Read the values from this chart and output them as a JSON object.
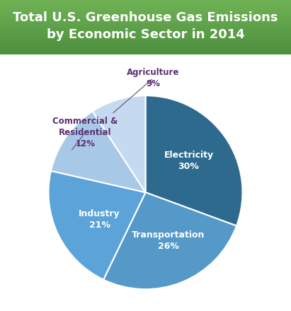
{
  "title": "Total U.S. Greenhouse Gas Emissions\nby Economic Sector in 2014",
  "title_bg_color_top": "#5a9a4a",
  "title_bg_color_bottom": "#8fbc6f",
  "title_text_color": "#ffffff",
  "sectors": [
    "Electricity",
    "Transportation",
    "Industry",
    "Commercial &\nResidential",
    "Agriculture"
  ],
  "values": [
    30,
    26,
    21,
    12,
    9
  ],
  "colors": [
    "#2e6a8e",
    "#5599c8",
    "#5ba3d9",
    "#a8c8e8",
    "#c5daf0"
  ],
  "label_colors_inside": [
    "#ffffff",
    "#ffffff",
    "#ffffff"
  ],
  "label_colors_outside": [
    "#4a3060",
    "#4a3060"
  ],
  "background_color": "#ffffff",
  "startangle": 90,
  "wedge_text_color_inside": "#ffffff",
  "wedge_text_color_outside": "#5a4080"
}
